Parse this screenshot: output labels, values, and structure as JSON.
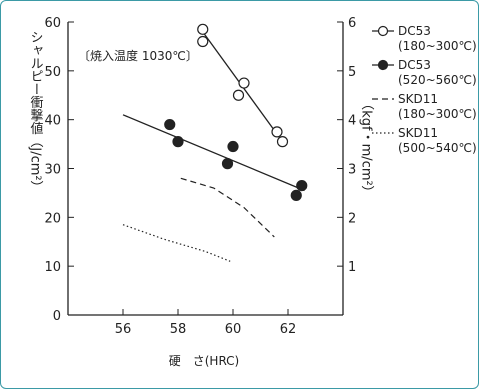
{
  "chart_data": {
    "type": "scatter",
    "annotation": "〔焼入温度 1030℃〕",
    "xlabel": "硬　さ(HRC)",
    "ylabel_left": "シャルピー衝撃値（J/cm²）",
    "ylabel_right": "（kgf・m/cm²）",
    "xlim": [
      54,
      64
    ],
    "ylim_left": [
      0,
      60
    ],
    "ylim_right": [
      0,
      6
    ],
    "x_ticks": [
      "56",
      "58",
      "60",
      "62"
    ],
    "y_ticks_left": [
      "0",
      "10",
      "20",
      "30",
      "40",
      "50",
      "60"
    ],
    "y_ticks_right": [
      "1",
      "2",
      "3",
      "4",
      "5",
      "6"
    ],
    "series": [
      {
        "name": "DC53",
        "condition": "(180~300℃)",
        "style": "open-circle",
        "color": "#222222",
        "points": [
          [
            58.9,
            58.5
          ],
          [
            58.9,
            56.0
          ],
          [
            60.2,
            45.0
          ],
          [
            60.4,
            47.5
          ],
          [
            61.6,
            37.5
          ],
          [
            61.8,
            35.5
          ]
        ],
        "fit_line": [
          [
            58.9,
            58.0
          ],
          [
            61.8,
            35.5
          ]
        ]
      },
      {
        "name": "DC53",
        "condition": "(520~560℃)",
        "style": "filled-circle",
        "color": "#222222",
        "points": [
          [
            57.7,
            39.0
          ],
          [
            58.0,
            35.5
          ],
          [
            59.8,
            31.0
          ],
          [
            60.0,
            34.5
          ],
          [
            62.3,
            24.5
          ],
          [
            62.5,
            26.5
          ]
        ],
        "fit_line": [
          [
            56.0,
            41.0
          ],
          [
            62.6,
            25.5
          ]
        ]
      },
      {
        "name": "SKD11",
        "condition": "(180~300℃)",
        "style": "dashed",
        "color": "#222222",
        "curve": [
          [
            58.1,
            28.0
          ],
          [
            59.3,
            26.0
          ],
          [
            60.4,
            22.0
          ],
          [
            61.5,
            16.0
          ]
        ]
      },
      {
        "name": "SKD11",
        "condition": "(500~540℃)",
        "style": "dotted",
        "color": "#222222",
        "curve": [
          [
            56.0,
            18.5
          ],
          [
            57.5,
            15.5
          ],
          [
            59.0,
            13.0
          ],
          [
            59.9,
            11.0
          ]
        ]
      }
    ]
  }
}
